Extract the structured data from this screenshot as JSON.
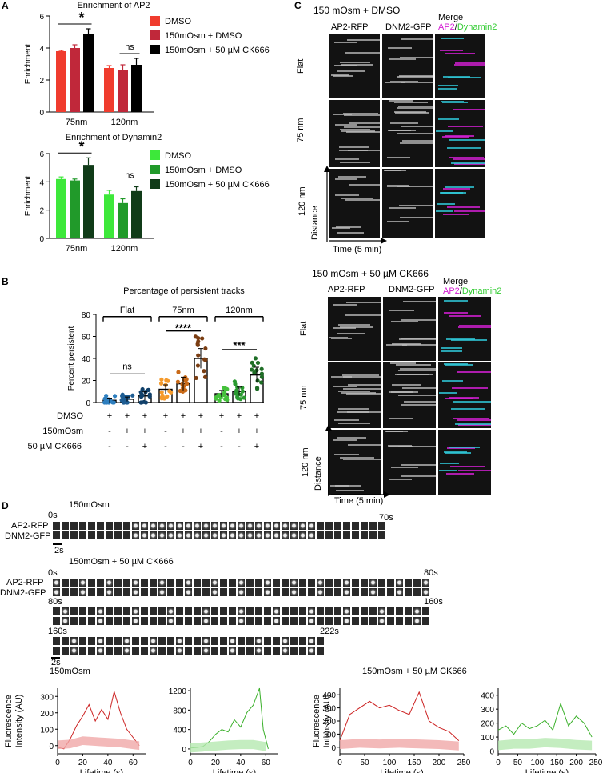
{
  "panel_labels": {
    "A": "A",
    "B": "B",
    "C": "C",
    "D": "D"
  },
  "chart_data": [
    {
      "type": "bar",
      "title": "Enrichment of AP2",
      "ylabel": "Enrichment",
      "ylim": [
        0,
        6
      ],
      "yticks": [
        "0",
        "2",
        "4",
        "6"
      ],
      "categories": [
        "75nm",
        "120nm"
      ],
      "series": [
        {
          "name": "DMSO",
          "color": "#f03c2e",
          "values": [
            3.8,
            2.75
          ],
          "err": [
            0.05,
            0.15
          ]
        },
        {
          "name": "150mOsm + DMSO",
          "color": "#c0283a",
          "values": [
            4.0,
            2.6
          ],
          "err": [
            0.2,
            0.35
          ]
        },
        {
          "name": "150mOsm + 50 µM CK666",
          "color": "#000000",
          "values": [
            4.9,
            2.95
          ],
          "err": [
            0.3,
            0.4
          ]
        }
      ],
      "annotations": [
        "*",
        "ns"
      ]
    },
    {
      "type": "bar",
      "title": "Enrichment of Dynamin2",
      "ylabel": "Enrichment",
      "ylim": [
        0,
        6
      ],
      "yticks": [
        "0",
        "2",
        "4",
        "6"
      ],
      "categories": [
        "75nm",
        "120nm"
      ],
      "series": [
        {
          "name": "DMSO",
          "color": "#3de83a",
          "values": [
            4.2,
            3.1
          ],
          "err": [
            0.15,
            0.3
          ]
        },
        {
          "name": "150mOsm + DMSO",
          "color": "#219a2a",
          "values": [
            4.1,
            2.5
          ],
          "err": [
            0.1,
            0.3
          ]
        },
        {
          "name": "150mOsm + 50 µM CK666",
          "color": "#103b18",
          "values": [
            5.2,
            3.35
          ],
          "err": [
            0.5,
            0.3
          ]
        }
      ],
      "annotations": [
        "*",
        "ns"
      ]
    },
    {
      "type": "scatter",
      "title": "Percentage of persistent tracks",
      "ylabel": "Percent persistent",
      "ylim": [
        0,
        80
      ],
      "yticks": [
        "0",
        "20",
        "40",
        "60",
        "80"
      ],
      "groups": [
        "Flat",
        "75nm",
        "120nm"
      ],
      "condition_rows": [
        {
          "label": "DMSO",
          "marks": [
            "+",
            "+",
            "+",
            "+",
            "+",
            "+",
            "+",
            "+",
            "+"
          ]
        },
        {
          "label": "150mOsm",
          "marks": [
            "-",
            "+",
            "+",
            "-",
            "+",
            "+",
            "-",
            "+",
            "+"
          ]
        },
        {
          "label": "50 µM CK666",
          "marks": [
            "-",
            "-",
            "+",
            "-",
            "-",
            "+",
            "-",
            "-",
            "+"
          ]
        }
      ],
      "bars": [
        {
          "group": "Flat",
          "color": "#2e7fbf",
          "mean": 2,
          "err": 2
        },
        {
          "group": "Flat",
          "color": "#1e5d93",
          "mean": 3,
          "err": 2
        },
        {
          "group": "Flat",
          "color": "#10406a",
          "mean": 6,
          "err": 4
        },
        {
          "group": "75nm",
          "color": "#f59a2b",
          "mean": 12,
          "err": 4
        },
        {
          "group": "75nm",
          "color": "#c96a18",
          "mean": 17,
          "err": 6
        },
        {
          "group": "75nm",
          "color": "#7a3d12",
          "mean": 40,
          "err": 9
        },
        {
          "group": "120nm",
          "color": "#45c13c",
          "mean": 8,
          "err": 3
        },
        {
          "group": "120nm",
          "color": "#2a9a30",
          "mean": 10,
          "err": 4
        },
        {
          "group": "120nm",
          "color": "#1f6e26",
          "mean": 25,
          "err": 7
        }
      ],
      "annotations": [
        "ns",
        "****",
        "***"
      ]
    },
    {
      "type": "line",
      "title": "150mOsm",
      "ylabel": "Fluorescence Intensity (AU)",
      "xlabel": "Lifetime (s)",
      "xlim": [
        0,
        70
      ],
      "ylim": [
        -50,
        350
      ],
      "xticks": [
        "0",
        "20",
        "40",
        "60"
      ],
      "yticks": [
        "0",
        "100",
        "200",
        "300"
      ],
      "series": [
        {
          "color": "#cc2222",
          "x": [
            0,
            5,
            10,
            15,
            20,
            25,
            30,
            35,
            40,
            45,
            50,
            55,
            60,
            65
          ],
          "y": [
            -10,
            -20,
            40,
            120,
            180,
            250,
            150,
            220,
            160,
            330,
            200,
            100,
            50,
            0
          ]
        },
        {
          "color": "#f0a8a8",
          "band": true,
          "x": [
            0,
            10,
            20,
            30,
            40,
            50,
            60,
            65
          ],
          "y": [
            5,
            10,
            30,
            25,
            20,
            15,
            5,
            0
          ]
        }
      ]
    },
    {
      "type": "line",
      "ylabel": "",
      "xlabel": "Lifetime (s)",
      "xlim": [
        0,
        70
      ],
      "ylim": [
        -100,
        1250
      ],
      "xticks": [
        "0",
        "20",
        "40",
        "60"
      ],
      "yticks": [
        "0",
        "400",
        "800",
        "1200"
      ],
      "series": [
        {
          "color": "#3ab02a",
          "x": [
            0,
            5,
            10,
            15,
            20,
            25,
            30,
            35,
            40,
            45,
            50,
            55,
            58,
            62
          ],
          "y": [
            20,
            30,
            50,
            150,
            300,
            400,
            350,
            600,
            450,
            750,
            900,
            1250,
            400,
            0
          ]
        },
        {
          "color": "#b5e8b0",
          "band": true,
          "x": [
            0,
            10,
            20,
            30,
            40,
            50,
            60
          ],
          "y": [
            20,
            40,
            60,
            80,
            90,
            90,
            50
          ]
        }
      ]
    },
    {
      "type": "line",
      "title": "150mOsm + 50 µM CK666",
      "ylabel": "Fluorescence Intensity (AU)",
      "xlabel": "Lifetime (s)",
      "xlim": [
        0,
        250
      ],
      "ylim": [
        -50,
        450
      ],
      "xticks": [
        "0",
        "50",
        "100",
        "150",
        "200",
        "250"
      ],
      "yticks": [
        "0",
        "100",
        "200",
        "300",
        "400"
      ],
      "series": [
        {
          "color": "#cc2222",
          "x": [
            0,
            20,
            40,
            60,
            80,
            100,
            120,
            140,
            160,
            180,
            200,
            220,
            240
          ],
          "y": [
            50,
            250,
            300,
            350,
            300,
            320,
            280,
            250,
            420,
            200,
            150,
            120,
            50
          ]
        },
        {
          "color": "#f0a8a8",
          "band": true,
          "x": [
            0,
            40,
            80,
            120,
            160,
            200,
            240
          ],
          "y": [
            20,
            30,
            25,
            30,
            25,
            20,
            10
          ]
        }
      ]
    },
    {
      "type": "line",
      "ylabel": "",
      "xlabel": "Lifetime (s)",
      "xlim": [
        0,
        250
      ],
      "ylim": [
        -20,
        450
      ],
      "xticks": [
        "0",
        "50",
        "100",
        "150",
        "200",
        "250"
      ],
      "yticks": [
        "0",
        "100",
        "200",
        "300",
        "400"
      ],
      "series": [
        {
          "color": "#3ab02a",
          "x": [
            0,
            20,
            40,
            60,
            80,
            100,
            120,
            140,
            160,
            180,
            200,
            220,
            240
          ],
          "y": [
            150,
            180,
            120,
            200,
            160,
            180,
            220,
            150,
            340,
            180,
            250,
            200,
            100
          ]
        },
        {
          "color": "#b5e8b0",
          "band": true,
          "x": [
            0,
            40,
            80,
            120,
            160,
            200,
            240
          ],
          "y": [
            40,
            50,
            50,
            60,
            55,
            45,
            40
          ]
        }
      ]
    }
  ],
  "panelC": {
    "top": {
      "title": "150 mOsm + DMSO",
      "cols": [
        "AP2-RFP",
        "DNM2-GFP",
        "Merge"
      ],
      "merge_ap2": "AP2",
      "merge_slash": "/",
      "merge_dyn": "Dynamin2",
      "rows": [
        "Flat",
        "75 nm",
        "120 nm"
      ],
      "distance": "Distance",
      "time": "Time (5 min)"
    },
    "bottom": {
      "title": "150 mOsm + 50 µM CK666",
      "cols": [
        "AP2-RFP",
        "DNM2-GFP",
        "Merge"
      ],
      "merge_ap2": "AP2",
      "merge_slash": "/",
      "merge_dyn": "Dynamin2",
      "rows": [
        "Flat",
        "75 nm",
        "120 nm"
      ],
      "distance": "Distance",
      "time": "Time (5 min)"
    }
  },
  "panelD": {
    "strip1": {
      "title": "150mOsm",
      "row1": "AP2-RFP",
      "row2": "DNM2-GFP",
      "t0": "0s",
      "tend": "70s",
      "scale": "2s"
    },
    "strip2": {
      "title": "150mOsm + 50 µM CK666",
      "row1": "AP2-RFP",
      "row2": "DNM2-GFP",
      "t0": "0s",
      "t80a": "80s",
      "t80b": "80s",
      "t160a": "160s",
      "t160b": "160s",
      "tend": "222s",
      "scale": "2s"
    }
  },
  "colors": {
    "ap2_magenta": "#d41fd4",
    "dyn_green": "#33cc33"
  }
}
